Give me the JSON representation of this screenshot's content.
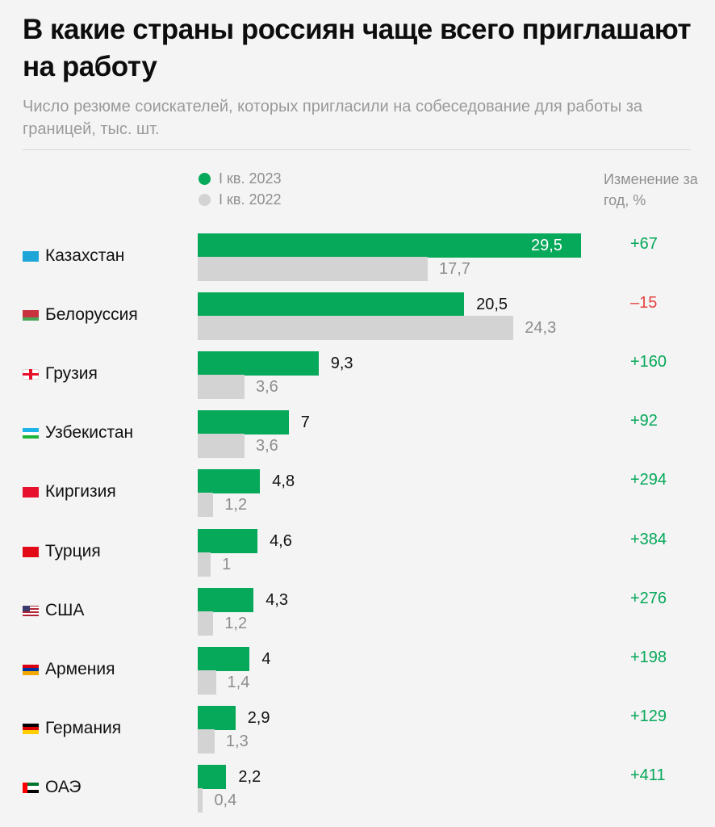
{
  "header": {
    "title": "В какие страны россиян чаще всего приглашают на работу",
    "subtitle": "Число резюме соискателей, которых пригласили на собеседование для работы за границей, тыс. шт."
  },
  "legend": {
    "current": "I кв. 2023",
    "previous": "I кв. 2022",
    "change_header": "Изменение за год, %"
  },
  "colors": {
    "current": "#06a85a",
    "previous": "#d3d3d3",
    "positive": "#06a85a",
    "negative": "#e4433f"
  },
  "chart_data": {
    "type": "bar",
    "orientation": "horizontal",
    "title": "В какие страны россиян чаще всего приглашают на работу",
    "subtitle": "Число резюме соискателей, которых пригласили на собеседование для работы за границей, тыс. шт.",
    "categories": [
      "Казахстан",
      "Белоруссия",
      "Грузия",
      "Узбекистан",
      "Киргизия",
      "Турция",
      "США",
      "Армения",
      "Германия",
      "ОАЭ"
    ],
    "series": [
      {
        "name": "I кв. 2023",
        "values": [
          29.5,
          20.5,
          9.3,
          7,
          4.8,
          4.6,
          4.3,
          4,
          2.9,
          2.2
        ],
        "labels": [
          "29,5",
          "20,5",
          "9,3",
          "7",
          "4,8",
          "4,6",
          "4,3",
          "4",
          "2,9",
          "2,2"
        ]
      },
      {
        "name": "I кв. 2022",
        "values": [
          17.7,
          24.3,
          3.6,
          3.6,
          1.2,
          1,
          1.2,
          1.4,
          1.3,
          0.4
        ],
        "labels": [
          "17,7",
          "24,3",
          "3,6",
          "3,6",
          "1,2",
          "1",
          "1,2",
          "1,4",
          "1,3",
          "0,4"
        ]
      }
    ],
    "change_pct": {
      "name": "Изменение за год, %",
      "values": [
        67,
        -15,
        160,
        92,
        294,
        384,
        276,
        198,
        129,
        411
      ],
      "labels": [
        "+67",
        "–15",
        "+160",
        "+92",
        "+294",
        "+384",
        "+276",
        "+198",
        "+129",
        "+411"
      ]
    },
    "flags": [
      "kazakhstan-flag-icon",
      "belarus-flag-icon",
      "georgia-flag-icon",
      "uzbekistan-flag-icon",
      "kyrgyzstan-flag-icon",
      "turkey-flag-icon",
      "usa-flag-icon",
      "armenia-flag-icon",
      "germany-flag-icon",
      "uae-flag-icon"
    ],
    "xlim": [
      0,
      29.5
    ],
    "grid": false,
    "legend_position": "top"
  }
}
